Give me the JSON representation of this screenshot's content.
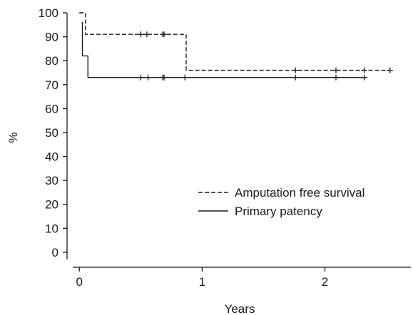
{
  "chart_data": {
    "type": "line",
    "chart_kind": "kaplan-meier step plot",
    "xlabel": "Years",
    "ylabel": "%",
    "xlim": [
      -0.1,
      2.7
    ],
    "ylim": [
      -3,
      100
    ],
    "xticks": [
      0,
      1,
      2
    ],
    "yticks": [
      0,
      10,
      20,
      30,
      40,
      50,
      60,
      70,
      80,
      90,
      100
    ],
    "grid": false,
    "legend_position": "bottom-right",
    "series": [
      {
        "name": "Amputation free survival",
        "line_style": "dashed",
        "color": "#1a1a1a",
        "steps": [
          {
            "x": 0.0,
            "y": 100
          },
          {
            "x": 0.05,
            "y": 91
          },
          {
            "x": 0.87,
            "y": 76
          }
        ],
        "end_x": 2.53,
        "censored": [
          {
            "x": 0.5,
            "y": 91
          },
          {
            "x": 0.55,
            "y": 91
          },
          {
            "x": 0.68,
            "y": 91
          },
          {
            "x": 0.69,
            "y": 91
          },
          {
            "x": 1.76,
            "y": 76
          },
          {
            "x": 2.09,
            "y": 76
          },
          {
            "x": 2.32,
            "y": 76
          },
          {
            "x": 2.53,
            "y": 76
          }
        ]
      },
      {
        "name": "Primary patency",
        "line_style": "solid",
        "color": "#1a1a1a",
        "steps": [
          {
            "x": 0.02,
            "y": 96
          },
          {
            "x": 0.025,
            "y": 82
          },
          {
            "x": 0.07,
            "y": 73
          }
        ],
        "end_x": 2.33,
        "censored": [
          {
            "x": 0.5,
            "y": 73
          },
          {
            "x": 0.56,
            "y": 73
          },
          {
            "x": 0.68,
            "y": 73
          },
          {
            "x": 0.69,
            "y": 73
          },
          {
            "x": 0.86,
            "y": 73
          },
          {
            "x": 1.76,
            "y": 73
          },
          {
            "x": 2.09,
            "y": 73
          },
          {
            "x": 2.32,
            "y": 73
          }
        ]
      }
    ]
  }
}
